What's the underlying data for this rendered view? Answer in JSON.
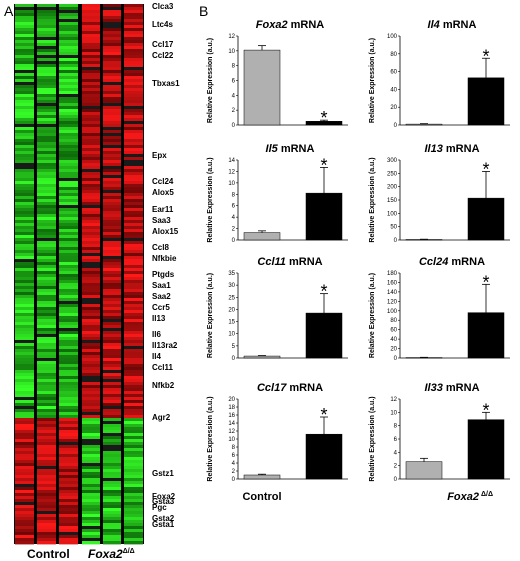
{
  "panels": {
    "a": "A",
    "b": "B"
  },
  "heatmap": {
    "group_labels": [
      "Control",
      "Foxa2"
    ],
    "group_superscript": "Δ/Δ",
    "genes": [
      "Clca3",
      "Ltc4s",
      "Ccl17",
      "Ccl22",
      "Tbxas1",
      "Epx",
      "Ccl24",
      "Alox5",
      "Ear11",
      "Saa3",
      "Alox15",
      "Ccl8",
      "Nfkbie",
      "Ptgds",
      "Saa1",
      "Saa2",
      "Ccr5",
      "Il13",
      "Il6",
      "Il13ra2",
      "Il4",
      "Ccl11",
      "Nfkb2",
      "Agr2",
      "Gstz1",
      "Gsta3",
      "Gsta1",
      "Foxa2",
      "Pgc",
      "Gsta2"
    ],
    "colors": {
      "up": "#ff2020",
      "down": "#30ff30",
      "neutral": "#000000"
    }
  },
  "chart_data": [
    {
      "type": "bar",
      "title_gene": "Foxa2",
      "title_suffix": " mRNA",
      "ylabel": "Relative Expression (a.u.)",
      "categories": [
        "Control",
        "Foxa2 Δ/Δ"
      ],
      "values": [
        10.1,
        0.5
      ],
      "errors": [
        0.6,
        0.15
      ],
      "significant": [
        false,
        true
      ],
      "ylim": [
        0,
        12
      ],
      "yticks": [
        0,
        2,
        4,
        6,
        8,
        10,
        12
      ],
      "star": "*",
      "colors": [
        "#b0b0b0",
        "#000000"
      ]
    },
    {
      "type": "bar",
      "title_gene": "Il4",
      "title_suffix": " mRNA",
      "ylabel": "Relative Expression (a.u.)",
      "categories": [
        "Control",
        "Foxa2 Δ/Δ"
      ],
      "values": [
        1,
        53
      ],
      "errors": [
        0.5,
        22
      ],
      "significant": [
        false,
        true
      ],
      "ylim": [
        0,
        100
      ],
      "yticks": [
        0,
        20,
        40,
        60,
        80,
        100
      ],
      "star": "*",
      "colors": [
        "#b0b0b0",
        "#000000"
      ]
    },
    {
      "type": "bar",
      "title_gene": "Il5",
      "title_suffix": " mRNA",
      "ylabel": "Relative Expression (a.u.)",
      "categories": [
        "Control",
        "Foxa2 Δ/Δ"
      ],
      "values": [
        1.3,
        8.2
      ],
      "errors": [
        0.3,
        4.5
      ],
      "significant": [
        false,
        true
      ],
      "ylim": [
        0,
        14
      ],
      "yticks": [
        0,
        2,
        4,
        6,
        8,
        10,
        12,
        14
      ],
      "star": "*",
      "colors": [
        "#b0b0b0",
        "#000000"
      ]
    },
    {
      "type": "bar",
      "title_gene": "Il13",
      "title_suffix": " mRNA",
      "ylabel": "Relative Expression (a.u.)",
      "categories": [
        "Control",
        "Foxa2 Δ/Δ"
      ],
      "values": [
        2,
        157
      ],
      "errors": [
        1,
        100
      ],
      "significant": [
        false,
        true
      ],
      "ylim": [
        0,
        300
      ],
      "yticks": [
        0,
        50,
        100,
        150,
        200,
        250,
        300
      ],
      "star": "*",
      "colors": [
        "#b0b0b0",
        "#000000"
      ]
    },
    {
      "type": "bar",
      "title_gene": "Ccl11",
      "title_suffix": " mRNA",
      "ylabel": "Relative Expression (a.u.)",
      "categories": [
        "Control",
        "Foxa2 Δ/Δ"
      ],
      "values": [
        0.8,
        18.5
      ],
      "errors": [
        0.2,
        8
      ],
      "significant": [
        false,
        true
      ],
      "ylim": [
        0,
        35
      ],
      "yticks": [
        0,
        5,
        10,
        15,
        20,
        25,
        30,
        35
      ],
      "star": "*",
      "colors": [
        "#b0b0b0",
        "#000000"
      ]
    },
    {
      "type": "bar",
      "title_gene": "Ccl24",
      "title_suffix": " mRNA",
      "ylabel": "Relative Expression (a.u.)",
      "categories": [
        "Control",
        "Foxa2 Δ/Δ"
      ],
      "values": [
        1,
        96
      ],
      "errors": [
        0.5,
        60
      ],
      "significant": [
        false,
        true
      ],
      "ylim": [
        0,
        180
      ],
      "yticks": [
        0,
        20,
        40,
        60,
        80,
        100,
        120,
        140,
        160,
        180
      ],
      "star": "*",
      "colors": [
        "#b0b0b0",
        "#000000"
      ]
    },
    {
      "type": "bar",
      "title_gene": "Ccl17",
      "title_suffix": " mRNA",
      "ylabel": "Relative Expression (a.u.)",
      "categories": [
        "Control",
        "Foxa2 Δ/Δ"
      ],
      "values": [
        1,
        11.2
      ],
      "errors": [
        0.2,
        4.3
      ],
      "significant": [
        false,
        true
      ],
      "ylim": [
        0,
        20
      ],
      "yticks": [
        0,
        2,
        4,
        6,
        8,
        10,
        12,
        14,
        16,
        18,
        20
      ],
      "star": "*",
      "colors": [
        "#b0b0b0",
        "#000000"
      ]
    },
    {
      "type": "bar",
      "title_gene": "Il33",
      "title_suffix": " mRNA",
      "ylabel": "Relative Expression (a.u.)",
      "categories": [
        "Control",
        "Foxa2 Δ/Δ"
      ],
      "values": [
        2.6,
        8.9
      ],
      "errors": [
        0.5,
        1.1
      ],
      "significant": [
        false,
        true
      ],
      "ylim": [
        0,
        12
      ],
      "yticks": [
        0,
        2,
        4,
        6,
        8,
        10,
        12
      ],
      "star": "*",
      "colors": [
        "#b0b0b0",
        "#000000"
      ]
    }
  ],
  "x_axis": {
    "control_label": "Control",
    "mutant_label": "Foxa2",
    "mutant_superscript": "Δ/Δ"
  }
}
